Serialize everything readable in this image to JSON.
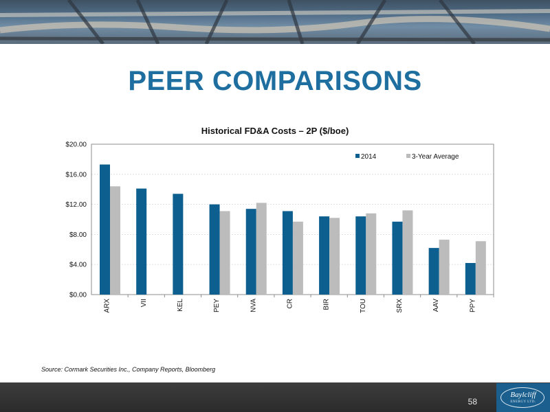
{
  "page": {
    "title": "PEER COMPARISONS",
    "source": "Source: Cormark Securities Inc., Company Reports, Bloomberg",
    "page_number": "58",
    "logo": {
      "name": "Baylcliff",
      "sub": "ENERGY LTD."
    }
  },
  "colors": {
    "title": "#1e6fa0",
    "series_2014": "#0d5f8f",
    "series_avg": "#bcbcbc",
    "footer": "#333333",
    "logo_bg": "#1a5f8e"
  },
  "chart_data": {
    "type": "bar",
    "title": "Historical FD&A Costs – 2P ($/boe)",
    "categories": [
      "ARX",
      "VII",
      "KEL",
      "PEY",
      "NVA",
      "CR",
      "BIR",
      "TOU",
      "SRX",
      "AAV",
      "PPY"
    ],
    "series": [
      {
        "name": "2014",
        "values": [
          17.3,
          14.1,
          13.4,
          12.0,
          11.4,
          11.1,
          10.4,
          10.4,
          9.7,
          6.2,
          4.2
        ]
      },
      {
        "name": "3-Year Average",
        "values": [
          14.4,
          null,
          null,
          11.1,
          12.2,
          9.7,
          10.2,
          10.8,
          11.2,
          7.3,
          7.1
        ]
      }
    ],
    "yticks": [
      "$0.00",
      "$4.00",
      "$8.00",
      "$12.00",
      "$16.00",
      "$20.00"
    ],
    "ylim": [
      0,
      20
    ],
    "grid": true,
    "legend": "top-right"
  }
}
